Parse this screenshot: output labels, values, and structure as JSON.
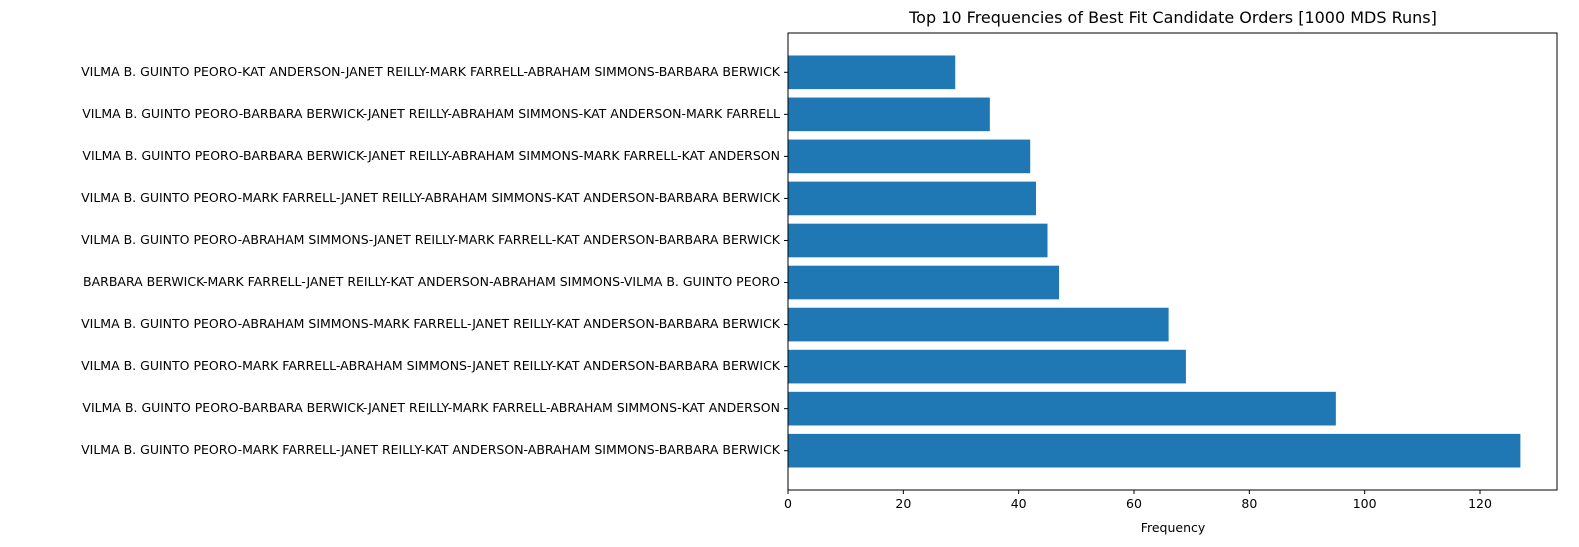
{
  "chart_data": {
    "type": "bar",
    "orientation": "horizontal",
    "title": "Top 10 Frequencies of Best Fit Candidate Orders [1000 MDS Runs]",
    "xlabel": "Frequency",
    "ylabel": "",
    "xlim": [
      0,
      133.35
    ],
    "xticks": [
      0,
      20,
      40,
      60,
      80,
      100,
      120
    ],
    "bar_color": "#1f77b4",
    "grid": false,
    "categories": [
      "VILMA B. GUINTO PEORO-MARK FARRELL-JANET REILLY-KAT ANDERSON-ABRAHAM SIMMONS-BARBARA BERWICK",
      "VILMA B. GUINTO PEORO-BARBARA BERWICK-JANET REILLY-MARK FARRELL-ABRAHAM SIMMONS-KAT ANDERSON",
      "VILMA B. GUINTO PEORO-MARK FARRELL-ABRAHAM SIMMONS-JANET REILLY-KAT ANDERSON-BARBARA BERWICK",
      "VILMA B. GUINTO PEORO-ABRAHAM SIMMONS-MARK FARRELL-JANET REILLY-KAT ANDERSON-BARBARA BERWICK",
      "BARBARA BERWICK-MARK FARRELL-JANET REILLY-KAT ANDERSON-ABRAHAM SIMMONS-VILMA B. GUINTO PEORO",
      "VILMA B. GUINTO PEORO-ABRAHAM SIMMONS-JANET REILLY-MARK FARRELL-KAT ANDERSON-BARBARA BERWICK",
      "VILMA B. GUINTO PEORO-MARK FARRELL-JANET REILLY-ABRAHAM SIMMONS-KAT ANDERSON-BARBARA BERWICK",
      "VILMA B. GUINTO PEORO-BARBARA BERWICK-JANET REILLY-ABRAHAM SIMMONS-MARK FARRELL-KAT ANDERSON",
      "VILMA B. GUINTO PEORO-BARBARA BERWICK-JANET REILLY-ABRAHAM SIMMONS-KAT ANDERSON-MARK FARRELL",
      "VILMA B. GUINTO PEORO-KAT ANDERSON-JANET REILLY-MARK FARRELL-ABRAHAM SIMMONS-BARBARA BERWICK"
    ],
    "values": [
      127,
      95,
      69,
      66,
      47,
      45,
      43,
      42,
      35,
      29
    ]
  }
}
